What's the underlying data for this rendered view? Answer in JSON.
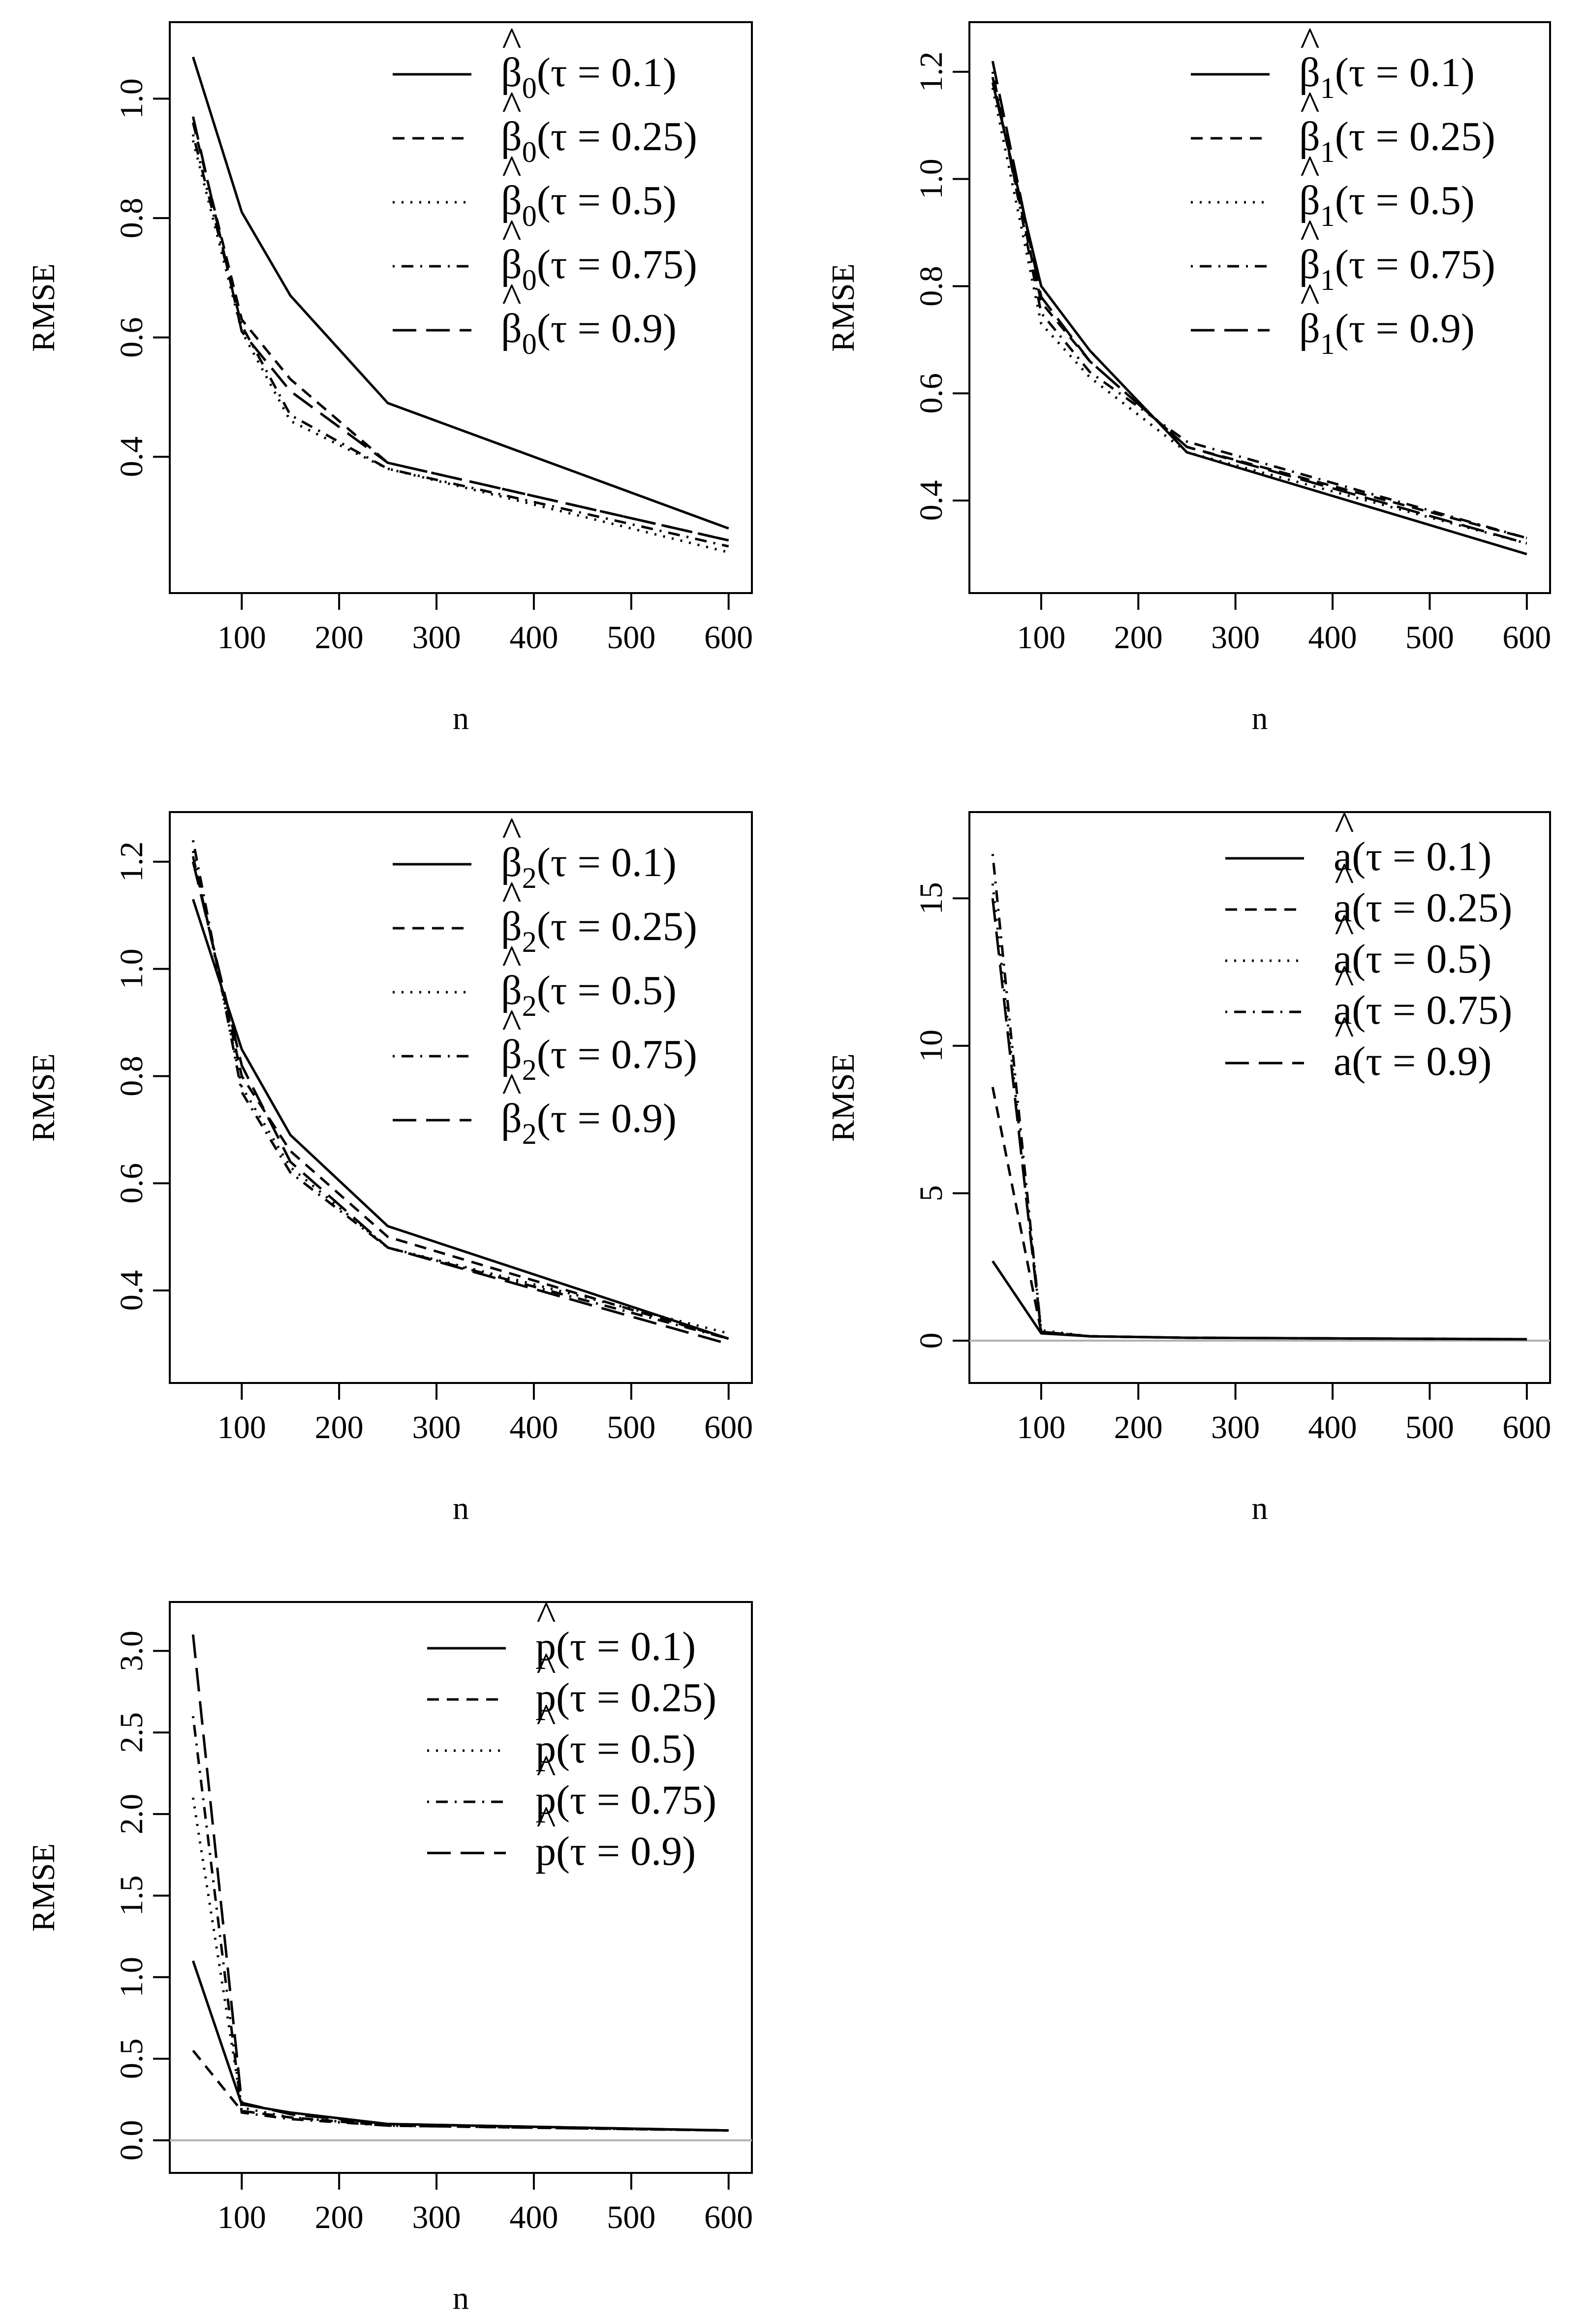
{
  "figure": {
    "panel_order": [
      "beta0",
      "beta1",
      "beta2",
      "a",
      "p"
    ]
  },
  "line_styles": {
    "0.1": "solid",
    "0.25": "short-dash",
    "0.5": "dotted",
    "0.75": "dot-dash",
    "0.9": "long-dash"
  },
  "chart_data": [
    {
      "id": "beta0",
      "type": "line",
      "xlabel": "n",
      "ylabel": "RMSE",
      "x": [
        50,
        100,
        150,
        250,
        600
      ],
      "xlim": [
        50,
        600
      ],
      "ylim": [
        0.21,
        1.09
      ],
      "xticks": [
        100,
        200,
        300,
        400,
        500,
        600
      ],
      "xtick_labels": [
        "100",
        "200",
        "300",
        "400",
        "500",
        "600"
      ],
      "yticks": [
        0.4,
        0.6,
        0.8,
        1.0
      ],
      "ytick_labels": [
        "0.4",
        "0.6",
        "0.8",
        "1.0"
      ],
      "zero_line": false,
      "legend_position": "top-right",
      "estimator": {
        "base": "β",
        "subscript": "0",
        "hat": "^"
      },
      "series": [
        {
          "name": "τ = 0.1",
          "tau": "0.1",
          "style": "solid",
          "values": [
            1.07,
            0.81,
            0.67,
            0.49,
            0.28
          ]
        },
        {
          "name": "τ = 0.25",
          "tau": "0.25",
          "style": "short-dash",
          "values": [
            0.96,
            0.63,
            0.53,
            0.39,
            0.26
          ]
        },
        {
          "name": "τ = 0.5",
          "tau": "0.5",
          "style": "dotted",
          "values": [
            0.93,
            0.61,
            0.46,
            0.38,
            0.24
          ]
        },
        {
          "name": "τ = 0.75",
          "tau": "0.75",
          "style": "dot-dash",
          "values": [
            0.94,
            0.62,
            0.47,
            0.38,
            0.25
          ]
        },
        {
          "name": "τ = 0.9",
          "tau": "0.9",
          "style": "long-dash",
          "values": [
            0.97,
            0.61,
            0.51,
            0.39,
            0.26
          ]
        }
      ]
    },
    {
      "id": "beta1",
      "type": "line",
      "xlabel": "n",
      "ylabel": "RMSE",
      "x": [
        50,
        100,
        150,
        250,
        600
      ],
      "xlim": [
        50,
        600
      ],
      "ylim": [
        0.27,
        1.25
      ],
      "xticks": [
        100,
        200,
        300,
        400,
        500,
        600
      ],
      "xtick_labels": [
        "100",
        "200",
        "300",
        "400",
        "500",
        "600"
      ],
      "yticks": [
        0.4,
        0.6,
        0.8,
        1.0,
        1.2
      ],
      "ytick_labels": [
        "0.4",
        "0.6",
        "0.8",
        "1.0",
        "1.2"
      ],
      "zero_line": false,
      "legend_position": "top-right",
      "estimator": {
        "base": "β",
        "subscript": "1",
        "hat": "^"
      },
      "series": [
        {
          "name": "τ = 0.1",
          "tau": "0.1",
          "style": "solid",
          "values": [
            1.18,
            0.8,
            0.68,
            0.49,
            0.3
          ]
        },
        {
          "name": "τ = 0.25",
          "tau": "0.25",
          "style": "short-dash",
          "values": [
            1.19,
            0.77,
            0.66,
            0.5,
            0.33
          ]
        },
        {
          "name": "τ = 0.5",
          "tau": "0.5",
          "style": "dotted",
          "values": [
            1.17,
            0.73,
            0.63,
            0.49,
            0.32
          ]
        },
        {
          "name": "τ = 0.75",
          "tau": "0.75",
          "style": "dot-dash",
          "values": [
            1.2,
            0.75,
            0.64,
            0.51,
            0.33
          ]
        },
        {
          "name": "τ = 0.9",
          "tau": "0.9",
          "style": "long-dash",
          "values": [
            1.22,
            0.78,
            0.66,
            0.5,
            0.32
          ]
        }
      ]
    },
    {
      "id": "beta2",
      "type": "line",
      "xlabel": "n",
      "ylabel": "RMSE",
      "x": [
        50,
        100,
        150,
        250,
        600
      ],
      "xlim": [
        50,
        600
      ],
      "ylim": [
        0.27,
        1.25
      ],
      "xticks": [
        100,
        200,
        300,
        400,
        500,
        600
      ],
      "xtick_labels": [
        "100",
        "200",
        "300",
        "400",
        "500",
        "600"
      ],
      "yticks": [
        0.4,
        0.6,
        0.8,
        1.0,
        1.2
      ],
      "ytick_labels": [
        "0.4",
        "0.6",
        "0.8",
        "1.0",
        "1.2"
      ],
      "zero_line": false,
      "legend_position": "top-right",
      "estimator": {
        "base": "β",
        "subscript": "2",
        "hat": "^"
      },
      "series": [
        {
          "name": "τ = 0.1",
          "tau": "0.1",
          "style": "solid",
          "values": [
            1.13,
            0.85,
            0.69,
            0.52,
            0.31
          ]
        },
        {
          "name": "τ = 0.25",
          "tau": "0.25",
          "style": "short-dash",
          "values": [
            1.21,
            0.8,
            0.66,
            0.5,
            0.31
          ]
        },
        {
          "name": "τ = 0.5",
          "tau": "0.5",
          "style": "dotted",
          "values": [
            1.22,
            0.78,
            0.63,
            0.48,
            0.32
          ]
        },
        {
          "name": "τ = 0.75",
          "tau": "0.75",
          "style": "dot-dash",
          "values": [
            1.24,
            0.77,
            0.62,
            0.48,
            0.31
          ]
        },
        {
          "name": "τ = 0.9",
          "tau": "0.9",
          "style": "long-dash",
          "values": [
            1.2,
            0.82,
            0.64,
            0.48,
            0.3
          ]
        }
      ]
    },
    {
      "id": "a",
      "type": "line",
      "xlabel": "n",
      "ylabel": "RMSE",
      "x": [
        50,
        100,
        150,
        250,
        600
      ],
      "xlim": [
        50,
        600
      ],
      "ylim": [
        -0.66,
        17.15
      ],
      "xticks": [
        100,
        200,
        300,
        400,
        500,
        600
      ],
      "xtick_labels": [
        "100",
        "200",
        "300",
        "400",
        "500",
        "600"
      ],
      "yticks": [
        0,
        5,
        10,
        15
      ],
      "ytick_labels": [
        "0",
        "5",
        "10",
        "15"
      ],
      "zero_line": true,
      "legend_position": "top-right",
      "estimator": {
        "base": "a",
        "subscript": "",
        "hat": "^"
      },
      "series": [
        {
          "name": "τ = 0.1",
          "tau": "0.1",
          "style": "solid",
          "values": [
            2.7,
            0.25,
            0.15,
            0.1,
            0.05
          ]
        },
        {
          "name": "τ = 0.25",
          "tau": "0.25",
          "style": "short-dash",
          "values": [
            8.6,
            0.3,
            0.15,
            0.1,
            0.05
          ]
        },
        {
          "name": "τ = 0.5",
          "tau": "0.5",
          "style": "dotted",
          "values": [
            15.5,
            0.35,
            0.15,
            0.1,
            0.05
          ]
        },
        {
          "name": "τ = 0.75",
          "tau": "0.75",
          "style": "dot-dash",
          "values": [
            16.5,
            0.3,
            0.15,
            0.1,
            0.05
          ]
        },
        {
          "name": "τ = 0.9",
          "tau": "0.9",
          "style": "long-dash",
          "values": [
            15.0,
            0.3,
            0.15,
            0.1,
            0.05
          ]
        }
      ]
    },
    {
      "id": "p",
      "type": "line",
      "xlabel": "n",
      "ylabel": "RMSE",
      "x": [
        50,
        100,
        150,
        250,
        600
      ],
      "xlim": [
        50,
        600
      ],
      "ylim": [
        -0.06,
        3.16
      ],
      "xticks": [
        100,
        200,
        300,
        400,
        500,
        600
      ],
      "xtick_labels": [
        "100",
        "200",
        "300",
        "400",
        "500",
        "600"
      ],
      "yticks": [
        0.0,
        0.5,
        1.0,
        1.5,
        2.0,
        2.5,
        3.0
      ],
      "ytick_labels": [
        "0.0",
        "0.5",
        "1.0",
        "1.5",
        "2.0",
        "2.5",
        "3.0"
      ],
      "zero_line": true,
      "legend_position": "top-right",
      "estimator": {
        "base": "p",
        "subscript": "",
        "hat": "^"
      },
      "series": [
        {
          "name": "τ = 0.1",
          "tau": "0.1",
          "style": "solid",
          "values": [
            1.1,
            0.22,
            0.17,
            0.1,
            0.06
          ]
        },
        {
          "name": "τ = 0.25",
          "tau": "0.25",
          "style": "short-dash",
          "values": [
            0.55,
            0.18,
            0.14,
            0.09,
            0.06
          ]
        },
        {
          "name": "τ = 0.5",
          "tau": "0.5",
          "style": "dotted",
          "values": [
            2.1,
            0.2,
            0.14,
            0.09,
            0.06
          ]
        },
        {
          "name": "τ = 0.75",
          "tau": "0.75",
          "style": "dot-dash",
          "values": [
            2.6,
            0.17,
            0.13,
            0.09,
            0.06
          ]
        },
        {
          "name": "τ = 0.9",
          "tau": "0.9",
          "style": "long-dash",
          "values": [
            3.1,
            0.23,
            0.16,
            0.1,
            0.06
          ]
        }
      ]
    }
  ]
}
